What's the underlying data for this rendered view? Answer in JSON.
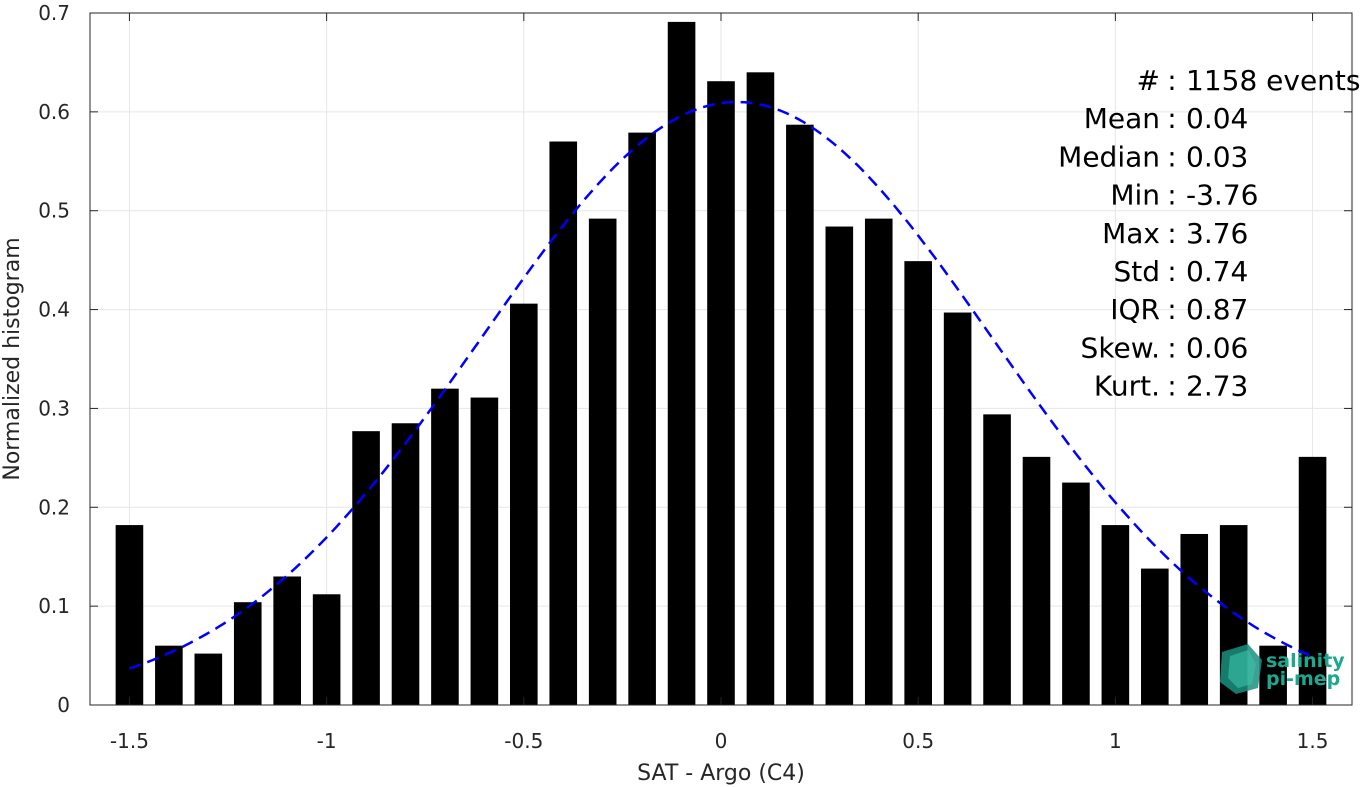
{
  "chart_data": {
    "type": "bar",
    "xlabel": "SAT - Argo (C4)",
    "ylabel": "Normalized histogram",
    "xlim": [
      -1.6,
      1.6
    ],
    "ylim": [
      0,
      0.7
    ],
    "bar_width": 0.07,
    "x_ticks": [
      -1.5,
      -1,
      -0.5,
      0,
      0.5,
      1,
      1.5
    ],
    "x_tick_labels": [
      "-1.5",
      "-1",
      "-0.5",
      "0",
      "0.5",
      "1",
      "1.5"
    ],
    "y_ticks": [
      0,
      0.1,
      0.2,
      0.3,
      0.4,
      0.5,
      0.6,
      0.7
    ],
    "y_tick_labels": [
      "0",
      "0.1",
      "0.2",
      "0.3",
      "0.4",
      "0.5",
      "0.6",
      "0.7"
    ],
    "grid": true,
    "bar_color": "#000000",
    "x": [
      -1.5,
      -1.4,
      -1.3,
      -1.2,
      -1.1,
      -1.0,
      -0.9,
      -0.8,
      -0.7,
      -0.6,
      -0.5,
      -0.4,
      -0.3,
      -0.2,
      -0.1,
      0.0,
      0.1,
      0.2,
      0.3,
      0.4,
      0.5,
      0.6,
      0.7,
      0.8,
      0.9,
      1.0,
      1.1,
      1.2,
      1.3,
      1.4,
      1.5
    ],
    "values": [
      0.182,
      0.06,
      0.052,
      0.104,
      0.13,
      0.112,
      0.277,
      0.285,
      0.32,
      0.311,
      0.406,
      0.57,
      0.492,
      0.579,
      0.691,
      0.631,
      0.64,
      0.587,
      0.484,
      0.492,
      0.449,
      0.397,
      0.294,
      0.251,
      0.225,
      0.182,
      0.138,
      0.173,
      0.182,
      0.06,
      0.251
    ],
    "fit": {
      "type": "gaussian",
      "mean": 0.04,
      "std": 0.65,
      "peak": 0.61,
      "x_range": [
        -1.5,
        1.5
      ],
      "color": "#0000ff",
      "style": "dashed"
    },
    "stats": [
      "#  : 1158 events",
      "Mean : 0.04",
      "Median : 0.03",
      "Min : -3.76",
      "Max : 3.76",
      "Std : 0.74",
      "IQR : 0.87",
      "Skew. : 0.06",
      "Kurt. : 2.73"
    ]
  },
  "logo": {
    "line1": "salinity",
    "line2": "pi-mep",
    "color": "#1aa88f"
  }
}
